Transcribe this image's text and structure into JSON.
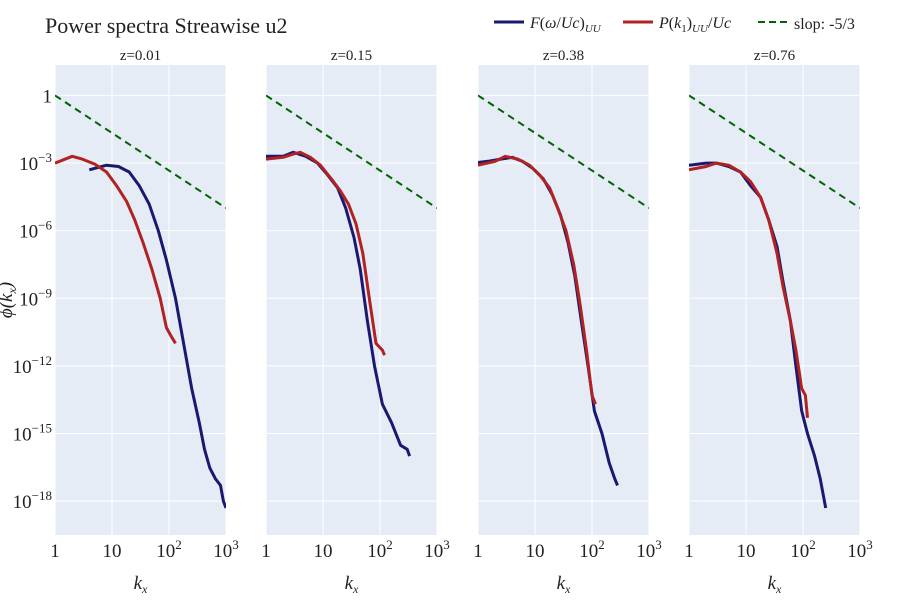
{
  "title": "Power spectra Streawise u2",
  "colors": {
    "temporal": "#191970",
    "spatial": "#b22222",
    "slope": "#006400",
    "panel_bg": "#e5ecf6",
    "grid": "#ffffff"
  },
  "legend": [
    "F(ω/Uc)_UU",
    "P(k₁)_UU/Uc",
    "slop: -5/3"
  ],
  "chart_data": [
    {
      "type": "line",
      "title": "z=0.01",
      "xlabel": "k_x",
      "ylabel": "ϕ(k_x)",
      "xscale": "log",
      "yscale": "log",
      "xlim": [
        1,
        1000
      ],
      "ylim": [
        1e-20,
        100.0
      ],
      "xticks": [
        "1",
        "10",
        "10^2",
        "10^3"
      ],
      "yticks": [
        "1",
        "10^-3",
        "10^-6",
        "10^-9",
        "10^-12",
        "10^-15",
        "10^-18"
      ],
      "grid": true,
      "series": [
        {
          "name": "F(ω/Uc)_UU",
          "x": [
            4,
            8,
            13,
            20,
            30,
            45,
            65,
            90,
            130,
            180,
            250,
            340,
            420,
            520,
            650,
            800,
            900,
            1000
          ],
          "y": [
            0.0005,
            0.0008,
            0.0007,
            0.0004,
            0.0001,
            1.5e-05,
            1e-06,
            5e-08,
            1e-09,
            1e-11,
            1e-13,
            3e-15,
            2e-16,
            3e-17,
            1e-17,
            5e-18,
            1e-18,
            5e-19
          ]
        },
        {
          "name": "P(k₁)_UU/Uc",
          "x": [
            1,
            2,
            3,
            5,
            8,
            12,
            18,
            25,
            35,
            50,
            70,
            90,
            110,
            130
          ],
          "y": [
            0.001,
            0.002,
            0.0015,
            0.0009,
            0.0004,
            0.0001,
            2e-05,
            3e-06,
            3e-07,
            2e-08,
            1e-09,
            5e-11,
            2e-11,
            1e-11
          ]
        },
        {
          "name": "slop: -5/3",
          "x": [
            1,
            1000
          ],
          "y": [
            1,
            1e-05
          ]
        }
      ]
    },
    {
      "type": "line",
      "title": "z=0.15",
      "xlabel": "k_x",
      "xscale": "log",
      "yscale": "log",
      "xlim": [
        1,
        1000
      ],
      "ylim": [
        1e-20,
        100.0
      ],
      "xticks": [
        "1",
        "10",
        "10^2",
        "10^3"
      ],
      "grid": true,
      "series": [
        {
          "name": "F(ω/Uc)_UU",
          "x": [
            0.6,
            1,
            2,
            3,
            5,
            8,
            12,
            18,
            25,
            35,
            45,
            60,
            80,
            110,
            160,
            230,
            300,
            330
          ],
          "y": [
            0.002,
            0.002,
            0.002,
            0.003,
            0.002,
            0.001,
            0.0003,
            8e-05,
            1e-05,
            5e-07,
            2e-08,
            1e-10,
            1e-12,
            2e-14,
            3e-15,
            3e-16,
            2e-16,
            1e-16
          ]
        },
        {
          "name": "P(k₁)_UU/Uc",
          "x": [
            1,
            2,
            3,
            4,
            6,
            9,
            14,
            20,
            28,
            38,
            50,
            65,
            85,
            110,
            120
          ],
          "y": [
            0.0015,
            0.0018,
            0.0025,
            0.003,
            0.0018,
            0.0008,
            0.0002,
            6e-05,
            1.5e-05,
            2e-06,
            1e-07,
            1e-09,
            1e-11,
            5e-12,
            3e-12
          ]
        },
        {
          "name": "slop: -5/3",
          "x": [
            1,
            1000
          ],
          "y": [
            1,
            1e-05
          ]
        }
      ]
    },
    {
      "type": "line",
      "title": "z=0.38",
      "xlabel": "k_x",
      "xscale": "log",
      "yscale": "log",
      "xlim": [
        1,
        1000
      ],
      "ylim": [
        1e-20,
        100.0
      ],
      "xticks": [
        "1",
        "10",
        "10^2",
        "10^3"
      ],
      "grid": true,
      "series": [
        {
          "name": "F(ω/Uc)_UU",
          "x": [
            0.8,
            1.5,
            2.5,
            4,
            6,
            9,
            14,
            20,
            28,
            38,
            50,
            65,
            85,
            110,
            150,
            200,
            250,
            280
          ],
          "y": [
            0.001,
            0.0012,
            0.0015,
            0.0018,
            0.0012,
            0.0006,
            0.0002,
            4e-05,
            5e-06,
            3e-07,
            1e-08,
            1e-10,
            1e-12,
            1e-14,
            1e-15,
            5e-17,
            1e-17,
            5e-18
          ]
        },
        {
          "name": "P(k₁)_UU/Uc",
          "x": [
            1,
            2,
            3,
            5,
            8,
            12,
            18,
            25,
            35,
            48,
            62,
            80,
            100,
            115
          ],
          "y": [
            0.0008,
            0.0012,
            0.002,
            0.0015,
            0.0008,
            0.0003,
            8e-05,
            1e-05,
            1e-06,
            3e-08,
            5e-10,
            5e-12,
            5e-14,
            2e-14
          ]
        },
        {
          "name": "slop: -5/3",
          "x": [
            1,
            1000
          ],
          "y": [
            1,
            1e-05
          ]
        }
      ]
    },
    {
      "type": "line",
      "title": "z=0.76",
      "xlabel": "k_x",
      "xscale": "log",
      "yscale": "log",
      "xlim": [
        1,
        1000
      ],
      "ylim": [
        1e-20,
        100.0
      ],
      "xticks": [
        "1",
        "10",
        "10^2",
        "10^3"
      ],
      "grid": true,
      "series": [
        {
          "name": "F(ω/Uc)_UU",
          "x": [
            0.5,
            1,
            2,
            3,
            5,
            8,
            12,
            18,
            25,
            35,
            45,
            60,
            75,
            95,
            120,
            160,
            200,
            250
          ],
          "y": [
            0.0005,
            0.0008,
            0.001,
            0.001,
            0.0007,
            0.0004,
            0.0001,
            3e-05,
            3e-06,
            2e-07,
            5e-09,
            1e-10,
            1e-12,
            1e-14,
            1e-15,
            1e-16,
            1e-17,
            5e-19
          ]
        },
        {
          "name": "P(k₁)_UU/Uc",
          "x": [
            1,
            2,
            3,
            5,
            8,
            12,
            18,
            25,
            35,
            45,
            60,
            75,
            95,
            110,
            120
          ],
          "y": [
            0.0005,
            0.0007,
            0.001,
            0.0008,
            0.0004,
            0.00015,
            3e-05,
            3e-06,
            1e-07,
            3e-09,
            1e-10,
            5e-12,
            1e-13,
            5e-14,
            5e-15
          ]
        },
        {
          "name": "slop: -5/3",
          "x": [
            1,
            1000
          ],
          "y": [
            1,
            1e-05
          ]
        }
      ]
    }
  ]
}
